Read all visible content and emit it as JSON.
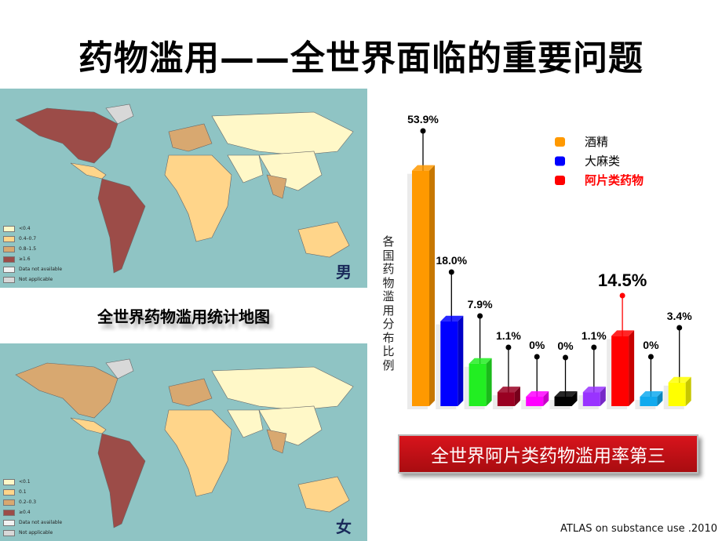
{
  "title": "药物滥用——全世界面临的重要问题",
  "maps": [
    {
      "sex": "男",
      "legend": [
        "<0.4",
        "0.4–0.7",
        "0.8–1.5",
        "≥1.6",
        "Data not available",
        "Not applicable"
      ]
    },
    {
      "sex": "女",
      "legend": [
        "<0.1",
        "0.1",
        "0.2–0.3",
        "≥0.4",
        "Data not available",
        "Not applicable"
      ]
    }
  ],
  "legend_colors": [
    "#fff8c8",
    "#ffd58a",
    "#d8a870",
    "#9c4c48",
    "#f2f2f2",
    "#d8d8d8"
  ],
  "map_caption": "全世界药物滥用统计地图",
  "chart_data": {
    "type": "bar",
    "ylabel": "各国药物滥用分布比例",
    "values": [
      53.9,
      18.0,
      7.9,
      1.1,
      0,
      0,
      1.1,
      14.5,
      0,
      3.4
    ],
    "labels": [
      "53.9%",
      "18.0%",
      "7.9%",
      "1.1%",
      "0%",
      "0%",
      "1.1%",
      "14.5%",
      "0%",
      "3.4%"
    ],
    "colors": [
      "#ff9900",
      "#0000ff",
      "#22ee22",
      "#990022",
      "#ff00ff",
      "#000000",
      "#9933ff",
      "#ff0000",
      "#11aaee",
      "#ffff00"
    ],
    "highlight_index": 7,
    "legend": [
      {
        "name": "酒精",
        "color": "#ff9900"
      },
      {
        "name": "大麻类",
        "color": "#0000ff"
      },
      {
        "name": "阿片类药物",
        "color": "#ff0000"
      }
    ],
    "legend_placement": "top-right"
  },
  "banner": "全世界阿片类药物滥用率第三",
  "source": "ATLAS on substance use .2010"
}
